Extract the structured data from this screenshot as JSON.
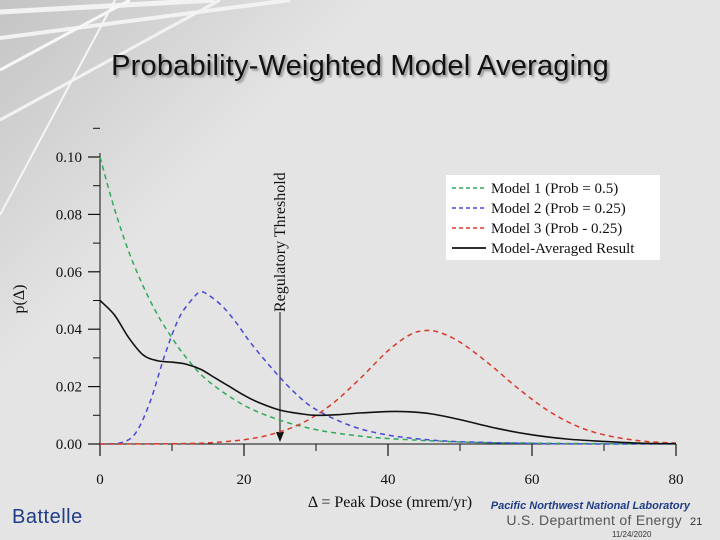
{
  "slide": {
    "title": "Probability-Weighted Model Averaging",
    "logo": "Battelle",
    "organization": "Pacific Northwest National Laboratory",
    "department": "U.S. Department of Energy",
    "page_number": "21",
    "date": "11/24/2020"
  },
  "chart_data": {
    "type": "line",
    "title": "",
    "xlabel": "Δ = Peak Dose (mrem/yr)",
    "ylabel": "p(Δ)",
    "xlim": [
      0,
      80
    ],
    "ylim": [
      0,
      0.1
    ],
    "xticks": [
      0,
      20,
      40,
      60,
      80
    ],
    "xtick_labels": [
      "0",
      "20",
      "40",
      "60",
      "80"
    ],
    "yticks": [
      0,
      0.02,
      0.04,
      0.06,
      0.08,
      0.1
    ],
    "ytick_labels": [
      "0.00",
      "0.02",
      "0.04",
      "0.06",
      "0.08",
      "0.10"
    ],
    "grid": false,
    "legend_position": "top-right",
    "threshold": {
      "x": 25,
      "label": "Regulatory Threshold"
    },
    "series": [
      {
        "name": "Model 1 (Prob = 0.5)",
        "color": "#2eaa55",
        "dash": "dashed",
        "x": [
          0,
          2,
          4,
          6,
          8,
          10,
          12,
          15,
          20,
          25,
          30,
          35,
          40,
          50,
          60,
          70,
          80
        ],
        "y": [
          0.1,
          0.082,
          0.067,
          0.055,
          0.045,
          0.037,
          0.03,
          0.022,
          0.0135,
          0.0083,
          0.005,
          0.0031,
          0.0019,
          0.0007,
          0.0003,
          0.0001,
          0.0
        ]
      },
      {
        "name": "Model 2 (Prob = 0.25)",
        "color": "#4848d8",
        "dash": "dashed",
        "x": [
          0,
          3,
          5,
          7,
          9,
          11,
          13,
          14,
          15,
          17,
          19,
          21,
          24,
          27,
          30,
          35,
          40,
          45,
          50,
          60,
          70,
          80
        ],
        "y": [
          0.0,
          0.0005,
          0.004,
          0.015,
          0.031,
          0.044,
          0.051,
          0.053,
          0.052,
          0.048,
          0.042,
          0.035,
          0.026,
          0.018,
          0.012,
          0.0062,
          0.0031,
          0.0016,
          0.0008,
          0.0002,
          0.0,
          0.0
        ]
      },
      {
        "name": "Model 3 (Prob - 0.25)",
        "color": "#d83a2a",
        "dash": "dashed",
        "x": [
          0,
          10,
          15,
          20,
          24,
          28,
          32,
          36,
          40,
          43,
          45,
          47,
          50,
          54,
          58,
          62,
          66,
          70,
          75,
          80
        ],
        "y": [
          0.0,
          0.0001,
          0.0004,
          0.0015,
          0.0035,
          0.0072,
          0.0135,
          0.0225,
          0.0325,
          0.038,
          0.0395,
          0.039,
          0.0355,
          0.028,
          0.0195,
          0.012,
          0.0065,
          0.0032,
          0.0011,
          0.0003
        ]
      },
      {
        "name": "Model-Averaged Result",
        "color": "#111111",
        "dash": "solid",
        "x": [
          0,
          2,
          4,
          6,
          8,
          10,
          12,
          14,
          16,
          18,
          20,
          22,
          25,
          28,
          30,
          33,
          36,
          40,
          43,
          46,
          50,
          55,
          60,
          65,
          70,
          75,
          80
        ],
        "y": [
          0.05,
          0.045,
          0.037,
          0.031,
          0.029,
          0.0285,
          0.0278,
          0.026,
          0.023,
          0.02,
          0.017,
          0.0145,
          0.0118,
          0.0105,
          0.01,
          0.0102,
          0.0108,
          0.0113,
          0.0112,
          0.0105,
          0.0085,
          0.0055,
          0.0032,
          0.0017,
          0.0009,
          0.0003,
          0.0001
        ]
      }
    ]
  }
}
